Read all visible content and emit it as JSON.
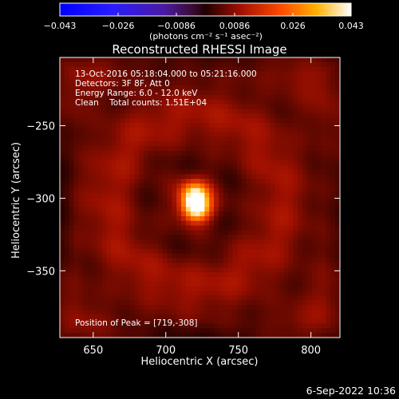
{
  "chart_data": {
    "type": "heatmap",
    "title": "Reconstructed RHESSI Image",
    "xlabel": "Heliocentric X (arcsec)",
    "ylabel": "Heliocentric Y (arcsec)",
    "xlim": [
      627,
      820
    ],
    "ylim": [
      -396,
      -203
    ],
    "xticks": [
      650,
      700,
      750,
      800
    ],
    "yticks": [
      -250,
      -300,
      -350
    ],
    "colorbar": {
      "min": -0.043,
      "max": 0.043,
      "ticks": [
        "−0.043",
        "−0.026",
        "−0.0086",
        "0.0086",
        "0.026",
        "0.043"
      ],
      "unit_label": "(photons cm⁻² s⁻¹ asec⁻²)",
      "colormap": "fire"
    },
    "annotations": [
      "13-Oct-2016 05:18:04.000 to 05:21:16.000",
      "Detectors: 3F 8F, Att 0",
      "Energy Range: 6.0 - 12.0 keV",
      "Clean    Total counts: 1.51E+04"
    ],
    "peak_label": "Position of Peak = [719,-308]",
    "sources": [
      {
        "x": 720,
        "y": -297,
        "peak": 0.035
      },
      {
        "x": 721,
        "y": -307,
        "peak": 0.043
      }
    ],
    "background": 0.0075,
    "grid": false
  },
  "footer": {
    "timestamp": "6-Sep-2022 10:36"
  }
}
